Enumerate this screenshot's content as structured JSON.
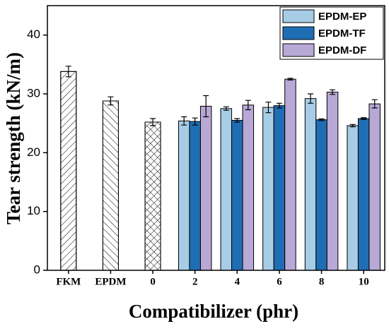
{
  "chart_data": {
    "type": "bar",
    "xlabel": "Compatibilizer (phr)",
    "ylabel": "Tear strength (kN/m)",
    "categories": [
      "FKM",
      "EPDM",
      "0",
      "2",
      "4",
      "6",
      "8",
      "10"
    ],
    "baseline": {
      "values": [
        33.8,
        28.8,
        25.2,
        null,
        null,
        null,
        null,
        null
      ],
      "errors": [
        0.9,
        0.7,
        0.6,
        null,
        null,
        null,
        null,
        null
      ],
      "hatches": [
        "/",
        "\\",
        "x",
        null,
        null,
        null,
        null,
        null
      ],
      "color": "#ffffff"
    },
    "series": [
      {
        "name": "EPDM-EP",
        "color": "#a7cde6",
        "values": [
          null,
          null,
          null,
          25.4,
          27.5,
          27.7,
          29.2,
          24.6
        ],
        "errors": [
          null,
          null,
          null,
          0.7,
          0.3,
          0.9,
          0.8,
          0.2
        ]
      },
      {
        "name": "EPDM-TF",
        "color": "#1f6eb4",
        "values": [
          null,
          null,
          null,
          25.3,
          25.5,
          28.0,
          25.6,
          25.8
        ],
        "errors": [
          null,
          null,
          null,
          0.6,
          0.3,
          0.4,
          0.15,
          0.15
        ]
      },
      {
        "name": "EPDM-DF",
        "color": "#b8a8d6",
        "values": [
          null,
          null,
          null,
          27.9,
          28.1,
          32.5,
          30.3,
          28.3
        ],
        "errors": [
          null,
          null,
          null,
          1.8,
          0.8,
          0.15,
          0.4,
          0.7
        ]
      }
    ],
    "ylim": [
      0,
      45
    ],
    "yticks": [
      0,
      10,
      20,
      30,
      40
    ],
    "legend": "upper right",
    "grid": false
  }
}
